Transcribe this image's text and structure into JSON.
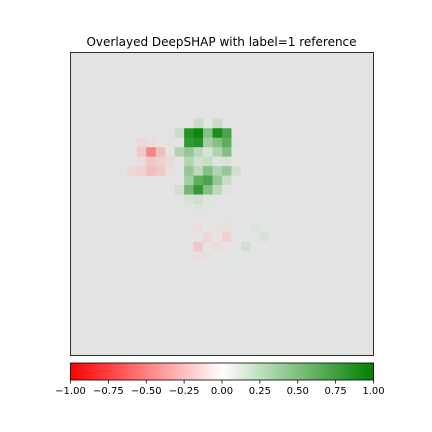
{
  "chart_data": {
    "type": "heatmap",
    "title": "Overlayed DeepSHAP with label=1 reference",
    "grid_shape": [
      32,
      32
    ],
    "background_gray": 0.89,
    "colormap": {
      "name": "red-white-green",
      "low": "#ff0000",
      "mid": "#ffffff",
      "high": "#008000"
    },
    "vmin": -1.0,
    "vmax": 1.0,
    "cells": [
      {
        "r": 6,
        "c": 12,
        "v": -0.15
      },
      {
        "r": 6,
        "c": 15,
        "v": -0.15
      },
      {
        "r": 7,
        "c": 10,
        "v": -0.1
      },
      {
        "r": 7,
        "c": 13,
        "v": 0.35
      },
      {
        "r": 7,
        "c": 15,
        "v": 0.35
      },
      {
        "r": 8,
        "c": 11,
        "v": 0.35
      },
      {
        "r": 8,
        "c": 12,
        "v": 0.85
      },
      {
        "r": 8,
        "c": 13,
        "v": 0.95
      },
      {
        "r": 8,
        "c": 14,
        "v": 0.6
      },
      {
        "r": 8,
        "c": 15,
        "v": 0.9
      },
      {
        "r": 8,
        "c": 16,
        "v": 0.75
      },
      {
        "r": 8,
        "c": 17,
        "v": -0.15
      },
      {
        "r": 9,
        "c": 7,
        "v": -0.25
      },
      {
        "r": 9,
        "c": 8,
        "v": -0.2
      },
      {
        "r": 9,
        "c": 9,
        "v": -0.1
      },
      {
        "r": 9,
        "c": 11,
        "v": -0.1
      },
      {
        "r": 9,
        "c": 12,
        "v": 0.8
      },
      {
        "r": 9,
        "c": 13,
        "v": 0.85
      },
      {
        "r": 9,
        "c": 14,
        "v": 0.5
      },
      {
        "r": 9,
        "c": 15,
        "v": 0.6
      },
      {
        "r": 9,
        "c": 16,
        "v": 0.7
      },
      {
        "r": 9,
        "c": 17,
        "v": 0.2
      },
      {
        "r": 10,
        "c": 7,
        "v": -0.35
      },
      {
        "r": 10,
        "c": 8,
        "v": -0.6
      },
      {
        "r": 10,
        "c": 9,
        "v": -0.4
      },
      {
        "r": 10,
        "c": 10,
        "v": -0.15
      },
      {
        "r": 10,
        "c": 11,
        "v": 0.45
      },
      {
        "r": 10,
        "c": 12,
        "v": 0.55
      },
      {
        "r": 10,
        "c": 13,
        "v": 0.4
      },
      {
        "r": 10,
        "c": 14,
        "v": 0.25
      },
      {
        "r": 10,
        "c": 15,
        "v": 0.45
      },
      {
        "r": 10,
        "c": 16,
        "v": 0.6
      },
      {
        "r": 10,
        "c": 17,
        "v": 0.05
      },
      {
        "r": 11,
        "c": 7,
        "v": -0.2
      },
      {
        "r": 11,
        "c": 8,
        "v": -0.35
      },
      {
        "r": 11,
        "c": 9,
        "v": -0.3
      },
      {
        "r": 11,
        "c": 10,
        "v": -0.25
      },
      {
        "r": 11,
        "c": 11,
        "v": -0.05
      },
      {
        "r": 11,
        "c": 12,
        "v": 0.45
      },
      {
        "r": 11,
        "c": 13,
        "v": 0.3
      },
      {
        "r": 11,
        "c": 14,
        "v": 0.35
      },
      {
        "r": 11,
        "c": 15,
        "v": 0.2
      },
      {
        "r": 11,
        "c": 16,
        "v": 0.25
      },
      {
        "r": 11,
        "c": 17,
        "v": -0.1
      },
      {
        "r": 11,
        "c": 18,
        "v": -0.05
      },
      {
        "r": 12,
        "c": 6,
        "v": -0.25
      },
      {
        "r": 12,
        "c": 7,
        "v": -0.3
      },
      {
        "r": 12,
        "c": 8,
        "v": -0.4
      },
      {
        "r": 12,
        "c": 9,
        "v": -0.35
      },
      {
        "r": 12,
        "c": 10,
        "v": -0.2
      },
      {
        "r": 12,
        "c": 11,
        "v": 0.05
      },
      {
        "r": 12,
        "c": 12,
        "v": 0.55
      },
      {
        "r": 12,
        "c": 13,
        "v": 0.4
      },
      {
        "r": 12,
        "c": 14,
        "v": 0.6
      },
      {
        "r": 12,
        "c": 15,
        "v": 0.45
      },
      {
        "r": 12,
        "c": 16,
        "v": 0.55
      },
      {
        "r": 12,
        "c": 17,
        "v": 0.3
      },
      {
        "r": 12,
        "c": 18,
        "v": 0.1
      },
      {
        "r": 13,
        "c": 9,
        "v": -0.15
      },
      {
        "r": 13,
        "c": 10,
        "v": -0.05
      },
      {
        "r": 13,
        "c": 11,
        "v": 0.1
      },
      {
        "r": 13,
        "c": 12,
        "v": 0.5
      },
      {
        "r": 13,
        "c": 13,
        "v": 0.7
      },
      {
        "r": 13,
        "c": 14,
        "v": 0.75
      },
      {
        "r": 13,
        "c": 15,
        "v": 0.55
      },
      {
        "r": 13,
        "c": 16,
        "v": 0.35
      },
      {
        "r": 13,
        "c": 17,
        "v": 0.15
      },
      {
        "r": 13,
        "c": 18,
        "v": -0.1
      },
      {
        "r": 14,
        "c": 10,
        "v": 0.1
      },
      {
        "r": 14,
        "c": 11,
        "v": 0.3
      },
      {
        "r": 14,
        "c": 12,
        "v": 0.65
      },
      {
        "r": 14,
        "c": 13,
        "v": 0.8
      },
      {
        "r": 14,
        "c": 14,
        "v": 0.6
      },
      {
        "r": 14,
        "c": 15,
        "v": 0.4
      },
      {
        "r": 14,
        "c": 16,
        "v": 0.2
      },
      {
        "r": 14,
        "c": 17,
        "v": 0.05
      },
      {
        "r": 15,
        "c": 10,
        "v": 0.05
      },
      {
        "r": 15,
        "c": 11,
        "v": 0.1
      },
      {
        "r": 15,
        "c": 12,
        "v": 0.25
      },
      {
        "r": 15,
        "c": 13,
        "v": 0.3
      },
      {
        "r": 15,
        "c": 14,
        "v": 0.2
      },
      {
        "r": 15,
        "c": 15,
        "v": 0.15
      },
      {
        "r": 15,
        "c": 16,
        "v": 0.05
      },
      {
        "r": 16,
        "c": 12,
        "v": 0.15
      },
      {
        "r": 16,
        "c": 13,
        "v": 0.2
      },
      {
        "r": 16,
        "c": 14,
        "v": 0.15
      },
      {
        "r": 16,
        "c": 19,
        "v": 0.05
      },
      {
        "r": 16,
        "c": 20,
        "v": 0.1
      },
      {
        "r": 16,
        "c": 21,
        "v": 0.05
      },
      {
        "r": 17,
        "c": 18,
        "v": 0.05
      },
      {
        "r": 17,
        "c": 19,
        "v": 0.1
      },
      {
        "r": 17,
        "c": 20,
        "v": 0.15
      },
      {
        "r": 17,
        "c": 21,
        "v": 0.1
      },
      {
        "r": 17,
        "c": 22,
        "v": 0.05
      },
      {
        "r": 18,
        "c": 11,
        "v": -0.05
      },
      {
        "r": 18,
        "c": 12,
        "v": -0.1
      },
      {
        "r": 18,
        "c": 13,
        "v": -0.2
      },
      {
        "r": 18,
        "c": 14,
        "v": -0.05
      },
      {
        "r": 18,
        "c": 15,
        "v": -0.15
      },
      {
        "r": 18,
        "c": 16,
        "v": -0.2
      },
      {
        "r": 18,
        "c": 17,
        "v": -0.05
      },
      {
        "r": 18,
        "c": 18,
        "v": 0.1
      },
      {
        "r": 18,
        "c": 19,
        "v": 0.2
      },
      {
        "r": 18,
        "c": 20,
        "v": 0.15
      },
      {
        "r": 18,
        "c": 21,
        "v": 0.1
      },
      {
        "r": 19,
        "c": 10,
        "v": -0.05
      },
      {
        "r": 19,
        "c": 12,
        "v": -0.1
      },
      {
        "r": 19,
        "c": 13,
        "v": -0.05
      },
      {
        "r": 19,
        "c": 14,
        "v": -0.25
      },
      {
        "r": 19,
        "c": 15,
        "v": -0.1
      },
      {
        "r": 19,
        "c": 16,
        "v": -0.3
      },
      {
        "r": 19,
        "c": 17,
        "v": -0.05
      },
      {
        "r": 19,
        "c": 18,
        "v": 0.05
      },
      {
        "r": 19,
        "c": 19,
        "v": 0.15
      },
      {
        "r": 19,
        "c": 20,
        "v": 0.25
      },
      {
        "r": 19,
        "c": 21,
        "v": 0.1
      },
      {
        "r": 20,
        "c": 11,
        "v": -0.05
      },
      {
        "r": 20,
        "c": 12,
        "v": -0.15
      },
      {
        "r": 20,
        "c": 13,
        "v": -0.35
      },
      {
        "r": 20,
        "c": 14,
        "v": -0.1
      },
      {
        "r": 20,
        "c": 15,
        "v": -0.2
      },
      {
        "r": 20,
        "c": 16,
        "v": -0.1
      },
      {
        "r": 20,
        "c": 17,
        "v": 0.05
      },
      {
        "r": 20,
        "c": 18,
        "v": 0.3
      },
      {
        "r": 20,
        "c": 19,
        "v": 0.1
      },
      {
        "r": 20,
        "c": 20,
        "v": 0.05
      },
      {
        "r": 21,
        "c": 12,
        "v": -0.05
      },
      {
        "r": 21,
        "c": 13,
        "v": -0.2
      },
      {
        "r": 21,
        "c": 14,
        "v": -0.15
      },
      {
        "r": 21,
        "c": 15,
        "v": -0.05
      },
      {
        "r": 21,
        "c": 16,
        "v": 0.05
      },
      {
        "r": 21,
        "c": 17,
        "v": 0.1
      },
      {
        "r": 21,
        "c": 18,
        "v": 0.1
      },
      {
        "r": 21,
        "c": 19,
        "v": 0.15
      },
      {
        "r": 22,
        "c": 11,
        "v": 0.05
      },
      {
        "r": 22,
        "c": 12,
        "v": 0.05
      },
      {
        "r": 22,
        "c": 13,
        "v": 0.05
      },
      {
        "r": 22,
        "c": 14,
        "v": 0.1
      },
      {
        "r": 22,
        "c": 15,
        "v": 0.1
      },
      {
        "r": 22,
        "c": 16,
        "v": 0.1
      },
      {
        "r": 22,
        "c": 17,
        "v": 0.15
      },
      {
        "r": 22,
        "c": 18,
        "v": 0.1
      },
      {
        "r": 23,
        "c": 13,
        "v": 0.05
      },
      {
        "r": 23,
        "c": 14,
        "v": 0.1
      },
      {
        "r": 23,
        "c": 15,
        "v": 0.05
      },
      {
        "r": 23,
        "c": 16,
        "v": 0.1
      },
      {
        "r": 23,
        "c": 17,
        "v": 0.15
      },
      {
        "r": 23,
        "c": 18,
        "v": 0.1
      },
      {
        "r": 23,
        "c": 19,
        "v": 0.05
      },
      {
        "r": 24,
        "c": 14,
        "v": 0.05
      },
      {
        "r": 24,
        "c": 16,
        "v": 0.05
      },
      {
        "r": 24,
        "c": 17,
        "v": 0.1
      },
      {
        "r": 24,
        "c": 18,
        "v": 0.1
      },
      {
        "r": 24,
        "c": 19,
        "v": 0.05
      },
      {
        "r": 25,
        "c": 16,
        "v": 0.05
      },
      {
        "r": 25,
        "c": 17,
        "v": 0.05
      },
      {
        "r": 25,
        "c": 18,
        "v": 0.05
      },
      {
        "r": 26,
        "c": 17,
        "v": 0.05
      },
      {
        "r": 26,
        "c": 18,
        "v": 0.05
      }
    ],
    "colorbar": {
      "ticks": [
        -1.0,
        -0.75,
        -0.5,
        -0.25,
        0.0,
        0.25,
        0.5,
        0.75,
        1.0
      ],
      "tick_labels": [
        "−1.00",
        "−0.75",
        "−0.50",
        "−0.25",
        "0.00",
        "0.25",
        "0.50",
        "0.75",
        "1.00"
      ],
      "orientation": "horizontal"
    }
  }
}
